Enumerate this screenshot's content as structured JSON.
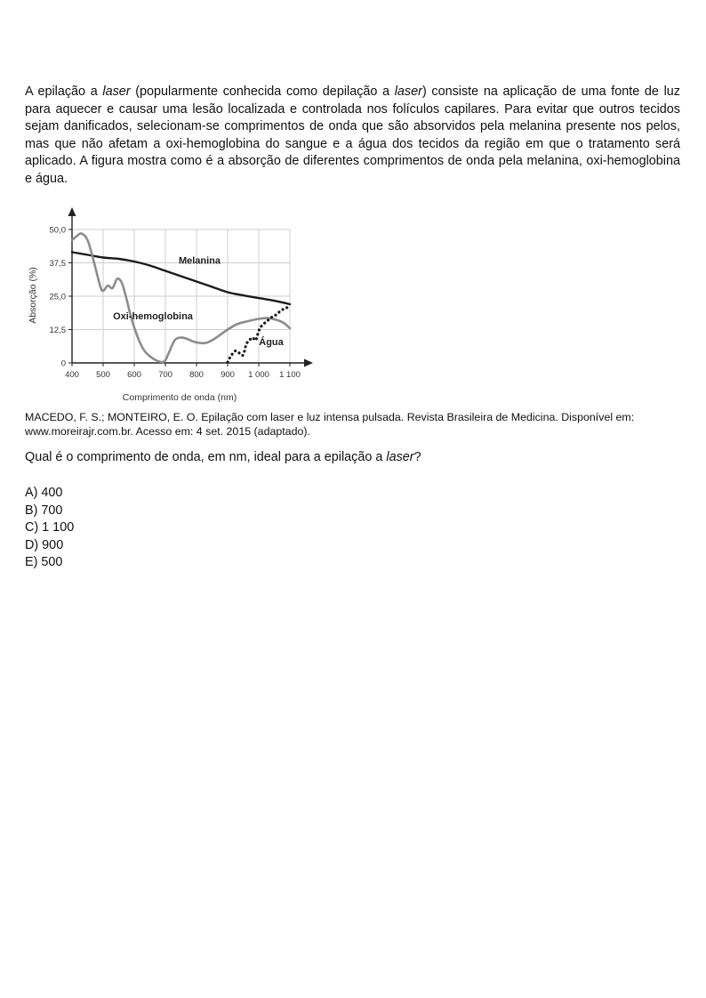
{
  "text": {
    "p1": "A epilação a ",
    "p1_em": "laser",
    "p2": " (popularmente conhecida como depilação a ",
    "p2_em": "laser",
    "p3": ") consiste na aplicação de uma fonte de luz para aquecer e causar uma lesão localizada e controlada nos folículos capilares. Para evitar que outros tecidos sejam danificados, selecionam-se comprimentos de onda que são absorvidos pela melanina presente nos pelos, mas que não afetam a oxi-hemoglobina do sangue e a água dos tecidos da região em que o tratamento será aplicado. A figura mostra como é a absorção de diferentes comprimentos de onda pela melanina, oxi-hemoglobina e água."
  },
  "chart_data": {
    "type": "line",
    "title": "",
    "xlabel": "Comprimento de onda (nm)",
    "ylabel": "Absorção (%)",
    "xlim": [
      400,
      1100
    ],
    "ylim": [
      0,
      50
    ],
    "x_ticks": [
      400,
      500,
      600,
      700,
      800,
      900,
      1000,
      1100
    ],
    "x_tick_labels": [
      "400",
      "500",
      "600",
      "700",
      "800",
      "900",
      "1 000",
      "1 100"
    ],
    "y_ticks": [
      0,
      12.5,
      25,
      37.5,
      50
    ],
    "y_tick_labels": [
      "0",
      "12,5",
      "25,0",
      "37,5",
      "50,0"
    ],
    "grid": true,
    "series": [
      {
        "name": "Melanina",
        "color": "#1a1a1a",
        "style": "solid",
        "x": [
          400,
          450,
          500,
          550,
          600,
          650,
          700,
          750,
          800,
          850,
          900,
          950,
          1000,
          1050,
          1100
        ],
        "y": [
          41.5,
          40.5,
          39.5,
          39.0,
          38.0,
          36.5,
          34.5,
          32.5,
          30.5,
          28.5,
          26.5,
          25.3,
          24.3,
          23.3,
          22.0
        ]
      },
      {
        "name": "Oxi-hemoglobina",
        "color": "#8c8c8c",
        "style": "solid",
        "x": [
          400,
          415,
          430,
          450,
          470,
          490,
          500,
          515,
          530,
          545,
          560,
          575,
          590,
          610,
          630,
          650,
          670,
          690,
          700,
          710,
          730,
          750,
          770,
          790,
          810,
          830,
          850,
          870,
          900,
          930,
          960,
          1000,
          1030,
          1060,
          1080,
          1100
        ],
        "y": [
          46.0,
          47.5,
          48.5,
          46.0,
          38.0,
          29.0,
          27.0,
          29.0,
          28.0,
          31.5,
          30.0,
          24.0,
          17.0,
          10.0,
          5.0,
          2.5,
          1.0,
          0.3,
          1.0,
          3.5,
          8.5,
          9.5,
          9.0,
          8.0,
          7.5,
          7.5,
          8.5,
          10.0,
          12.5,
          14.5,
          15.5,
          16.5,
          16.8,
          16.0,
          15.0,
          13.0
        ]
      },
      {
        "name": "Água",
        "color": "#1a1a1a",
        "style": "dotted",
        "x": [
          900,
          910,
          925,
          940,
          950,
          960,
          970,
          980,
          990,
          1000,
          1010,
          1025,
          1040,
          1055,
          1070,
          1085,
          1100
        ],
        "y": [
          0.3,
          2.5,
          4.5,
          3.5,
          3.0,
          7.0,
          8.5,
          9.5,
          8.5,
          12.0,
          14.0,
          15.5,
          17.0,
          18.0,
          19.5,
          20.5,
          21.0
        ]
      }
    ],
    "annotations": [
      {
        "text": "Melanina",
        "x": 810,
        "y": 37.2
      },
      {
        "text": "Oxi-hemoglobina",
        "x": 660,
        "y": 16.3
      },
      {
        "text": "Água",
        "x": 1040,
        "y": 6.6
      }
    ]
  },
  "source": "MACEDO, F. S.; MONTEIRO, E. O. Epilação com laser e luz intensa pulsada. Revista Brasileira de Medicina. Disponível em: www.moreirajr.com.br. Acesso em: 4 set. 2015 (adaptado).",
  "question": {
    "before": "Qual é o comprimento de onda, em nm, ideal para a epilação a ",
    "em": "laser",
    "after": "?"
  },
  "options": [
    "A) 400",
    "B) 700",
    "C) 1 100",
    "D) 900",
    "E) 500"
  ]
}
